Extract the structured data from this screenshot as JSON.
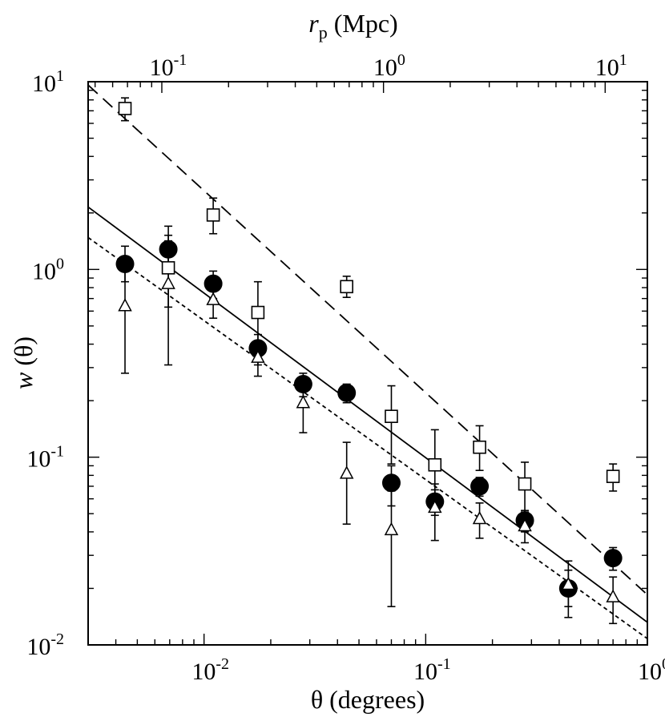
{
  "chart_data": {
    "type": "scatter",
    "xscale": "log",
    "yscale": "log",
    "xlim": [
      0.003,
      1.0
    ],
    "ylim": [
      0.01,
      10
    ],
    "xlabel": "θ (degrees)",
    "ylabel_main": "w",
    "ylabel_arg": " (θ)",
    "top_axis": {
      "label_main": "r",
      "label_sub": "p",
      "label_unit": " (Mpc)",
      "ticks": [
        {
          "value_mpc": 0.1,
          "theta": 0.00645,
          "base": "10",
          "exp": "-1"
        },
        {
          "value_mpc": 1,
          "theta": 0.0641,
          "base": "10",
          "exp": "0"
        },
        {
          "value_mpc": 10,
          "theta": 0.642,
          "base": "10",
          "exp": "1"
        }
      ]
    },
    "x_ticks": [
      {
        "value": 0.01,
        "base": "10",
        "exp": "-2"
      },
      {
        "value": 0.1,
        "base": "10",
        "exp": "-1"
      },
      {
        "value": 1,
        "base": "10",
        "exp": "0"
      }
    ],
    "y_ticks": [
      {
        "value": 0.01,
        "base": "10",
        "exp": "-2"
      },
      {
        "value": 0.1,
        "base": "10",
        "exp": "-1"
      },
      {
        "value": 1,
        "base": "10",
        "exp": "0"
      },
      {
        "value": 10,
        "base": "10",
        "exp": "1"
      }
    ],
    "series": [
      {
        "marker": "filled-circle",
        "points": [
          {
            "x": 0.0044,
            "y": 1.07,
            "lo": 0.86,
            "hi": 1.33
          },
          {
            "x": 0.0069,
            "y": 1.28,
            "lo": 1.05,
            "hi": 1.52
          },
          {
            "x": 0.011,
            "y": 0.84,
            "lo": 0.7,
            "hi": 0.98
          },
          {
            "x": 0.0175,
            "y": 0.38,
            "lo": 0.31,
            "hi": 0.45
          },
          {
            "x": 0.028,
            "y": 0.245,
            "lo": 0.21,
            "hi": 0.28
          },
          {
            "x": 0.044,
            "y": 0.22,
            "lo": 0.195,
            "hi": 0.245
          },
          {
            "x": 0.07,
            "y": 0.073,
            "lo": 0.055,
            "hi": 0.09
          },
          {
            "x": 0.11,
            "y": 0.058,
            "lo": 0.049,
            "hi": 0.067
          },
          {
            "x": 0.175,
            "y": 0.07,
            "lo": 0.062,
            "hi": 0.078
          },
          {
            "x": 0.28,
            "y": 0.046,
            "lo": 0.04,
            "hi": 0.052
          },
          {
            "x": 0.44,
            "y": 0.02,
            "lo": 0.016,
            "hi": 0.025
          },
          {
            "x": 0.7,
            "y": 0.029,
            "lo": 0.025,
            "hi": 0.033
          }
        ]
      },
      {
        "marker": "open-square",
        "points": [
          {
            "x": 0.0044,
            "y": 7.2,
            "lo": 6.2,
            "hi": 8.2
          },
          {
            "x": 0.0069,
            "y": 1.02,
            "lo": 0.63,
            "hi": 1.7
          },
          {
            "x": 0.011,
            "y": 1.95,
            "lo": 1.55,
            "hi": 2.4
          },
          {
            "x": 0.0175,
            "y": 0.59,
            "lo": 0.36,
            "hi": 0.86
          },
          {
            "x": 0.044,
            "y": 0.81,
            "lo": 0.71,
            "hi": 0.92
          },
          {
            "x": 0.07,
            "y": 0.165,
            "lo": 0.092,
            "hi": 0.24
          },
          {
            "x": 0.11,
            "y": 0.091,
            "lo": 0.052,
            "hi": 0.14
          },
          {
            "x": 0.175,
            "y": 0.113,
            "lo": 0.085,
            "hi": 0.147
          },
          {
            "x": 0.28,
            "y": 0.072,
            "lo": 0.051,
            "hi": 0.094
          },
          {
            "x": 0.7,
            "y": 0.079,
            "lo": 0.066,
            "hi": 0.092
          }
        ]
      },
      {
        "marker": "open-triangle",
        "points": [
          {
            "x": 0.0044,
            "y": 0.64,
            "lo": 0.28,
            "hi": 1.02
          },
          {
            "x": 0.0069,
            "y": 0.84,
            "lo": 0.31,
            "hi": 1.42
          },
          {
            "x": 0.011,
            "y": 0.69,
            "lo": 0.55,
            "hi": 0.84
          },
          {
            "x": 0.0175,
            "y": 0.34,
            "lo": 0.27,
            "hi": 0.41
          },
          {
            "x": 0.028,
            "y": 0.195,
            "lo": 0.135,
            "hi": 0.26
          },
          {
            "x": 0.044,
            "y": 0.082,
            "lo": 0.044,
            "hi": 0.12
          },
          {
            "x": 0.07,
            "y": 0.041,
            "lo": 0.016,
            "hi": 0.066
          },
          {
            "x": 0.11,
            "y": 0.054,
            "lo": 0.036,
            "hi": 0.072
          },
          {
            "x": 0.175,
            "y": 0.047,
            "lo": 0.037,
            "hi": 0.057
          },
          {
            "x": 0.28,
            "y": 0.043,
            "lo": 0.035,
            "hi": 0.051
          },
          {
            "x": 0.44,
            "y": 0.021,
            "lo": 0.014,
            "hi": 0.028
          },
          {
            "x": 0.7,
            "y": 0.018,
            "lo": 0.013,
            "hi": 0.023
          }
        ]
      }
    ],
    "fit_lines": [
      {
        "style": "solid",
        "x": [
          0.003,
          1.0
        ],
        "y": [
          2.15,
          0.0132
        ]
      },
      {
        "style": "dashed",
        "x": [
          0.003,
          1.0
        ],
        "y": [
          9.6,
          0.0185
        ]
      },
      {
        "style": "dotted",
        "x": [
          0.003,
          1.0
        ],
        "y": [
          1.48,
          0.0108
        ]
      }
    ]
  }
}
